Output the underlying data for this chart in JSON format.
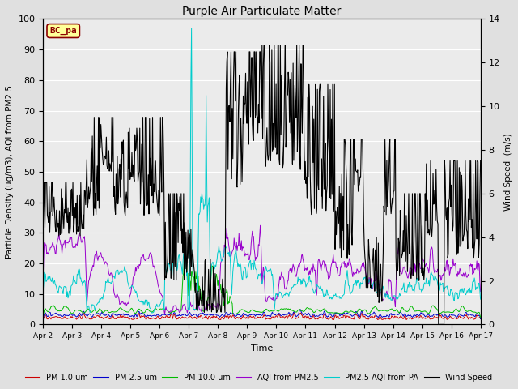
{
  "title": "Purple Air Particulate Matter",
  "xlabel": "Time",
  "ylabel_left": "Particle Density (ug/m3), AQI from PM2.5",
  "ylabel_right": "Wind Speed  (m/s)",
  "ylim_left": [
    0,
    100
  ],
  "ylim_right": [
    0,
    14
  ],
  "xtick_labels": [
    "Apr 2",
    "Apr 3",
    "Apr 4",
    "Apr 5",
    "Apr 6",
    "Apr 7",
    "Apr 8",
    "Apr 9",
    "Apr 10",
    "Apr 11",
    "Apr 12",
    "Apr 13",
    "Apr 14",
    "Apr 15",
    "Apr 16",
    "Apr 17"
  ],
  "annotation_text": "BC_pa",
  "annotation_color": "#8B0000",
  "annotation_bg": "#FFFF99",
  "colors": {
    "pm10": "#CC0000",
    "pm25": "#0000CC",
    "pm100": "#00BB00",
    "aqi_pm25": "#9900CC",
    "aqi_pa": "#00CCCC",
    "wind": "#000000"
  },
  "legend_labels": [
    "PM 1.0 um",
    "PM 2.5 um",
    "PM 10.0 um",
    "AQI from PM2.5",
    "PM2.5 AQI from PA",
    "Wind Speed"
  ],
  "background_color": "#E0E0E0",
  "plot_bg": "#EBEBEB",
  "grid_color": "#FFFFFF"
}
